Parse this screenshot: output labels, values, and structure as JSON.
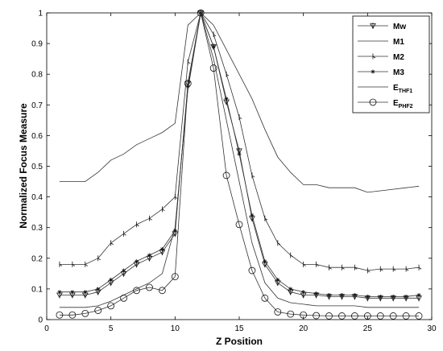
{
  "chart_data": {
    "type": "line",
    "xlabel": "Z Position",
    "ylabel": "Normalized Focus Measure",
    "xlim": [
      0,
      30
    ],
    "ylim": [
      0,
      1
    ],
    "xticks": [
      0,
      5,
      10,
      15,
      20,
      25,
      30
    ],
    "yticks": [
      0,
      0.1,
      0.2,
      0.3,
      0.4,
      0.5,
      0.6,
      0.7,
      0.8,
      0.9,
      1
    ],
    "grid": false,
    "legend_position": "top-right",
    "x": [
      1,
      2,
      3,
      4,
      5,
      6,
      7,
      8,
      9,
      10,
      11,
      12,
      13,
      14,
      15,
      16,
      17,
      18,
      19,
      20,
      21,
      22,
      23,
      24,
      25,
      26,
      27,
      28,
      29
    ],
    "series": [
      {
        "name": "Mw",
        "marker": "down-triangle",
        "values": [
          0.08,
          0.08,
          0.08,
          0.09,
          0.12,
          0.15,
          0.18,
          0.2,
          0.22,
          0.28,
          0.77,
          1.0,
          0.89,
          0.71,
          0.55,
          0.33,
          0.18,
          0.12,
          0.09,
          0.08,
          0.08,
          0.075,
          0.075,
          0.075,
          0.07,
          0.07,
          0.07,
          0.07,
          0.07
        ]
      },
      {
        "name": "M1",
        "marker": "none",
        "values": [
          0.45,
          0.45,
          0.45,
          0.48,
          0.52,
          0.54,
          0.57,
          0.59,
          0.61,
          0.64,
          0.96,
          1.0,
          0.96,
          0.88,
          0.8,
          0.72,
          0.62,
          0.53,
          0.48,
          0.44,
          0.44,
          0.43,
          0.43,
          0.43,
          0.415,
          0.42,
          0.425,
          0.43,
          0.435
        ]
      },
      {
        "name": "M2",
        "marker": "tick",
        "values": [
          0.18,
          0.18,
          0.18,
          0.2,
          0.25,
          0.28,
          0.31,
          0.33,
          0.36,
          0.4,
          0.84,
          1.0,
          0.93,
          0.8,
          0.66,
          0.47,
          0.33,
          0.25,
          0.21,
          0.18,
          0.18,
          0.17,
          0.17,
          0.17,
          0.16,
          0.165,
          0.165,
          0.165,
          0.17
        ]
      },
      {
        "name": "M3",
        "marker": "star",
        "values": [
          0.09,
          0.09,
          0.09,
          0.1,
          0.13,
          0.16,
          0.19,
          0.21,
          0.23,
          0.29,
          0.76,
          1.0,
          0.89,
          0.72,
          0.54,
          0.34,
          0.19,
          0.13,
          0.1,
          0.09,
          0.085,
          0.08,
          0.08,
          0.08,
          0.075,
          0.075,
          0.075,
          0.075,
          0.08
        ]
      },
      {
        "name": "E",
        "subscript": "THF1",
        "marker": "none",
        "values": [
          0.04,
          0.04,
          0.04,
          0.045,
          0.06,
          0.08,
          0.1,
          0.12,
          0.15,
          0.3,
          0.75,
          1.0,
          0.85,
          0.65,
          0.45,
          0.25,
          0.12,
          0.07,
          0.055,
          0.05,
          0.045,
          0.045,
          0.045,
          0.045,
          0.04,
          0.04,
          0.04,
          0.04,
          0.04
        ]
      },
      {
        "name": "E",
        "subscript": "PHF2",
        "marker": "circle",
        "values": [
          0.015,
          0.015,
          0.02,
          0.03,
          0.045,
          0.07,
          0.095,
          0.105,
          0.095,
          0.14,
          0.77,
          1.0,
          0.82,
          0.47,
          0.31,
          0.16,
          0.07,
          0.025,
          0.018,
          0.015,
          0.013,
          0.012,
          0.012,
          0.012,
          0.012,
          0.012,
          0.012,
          0.012,
          0.012
        ]
      }
    ]
  }
}
